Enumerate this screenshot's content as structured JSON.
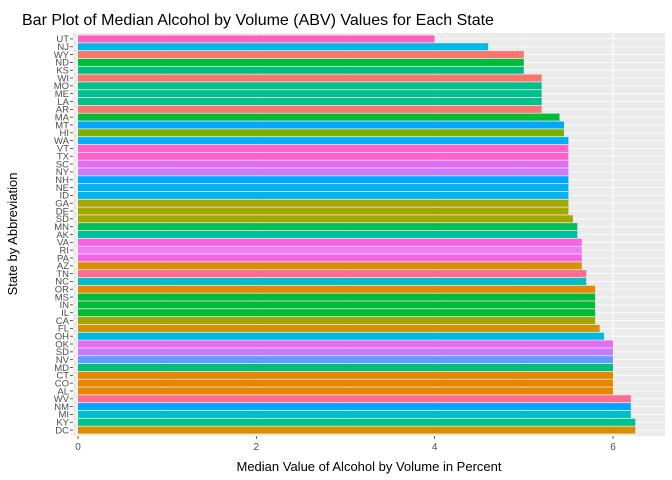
{
  "chart_data": {
    "type": "bar",
    "orientation": "horizontal",
    "title": "Bar Plot of Median Alcohol by Volume (ABV) Values for Each State",
    "xlabel": "Median Value of Alcohol by Volume in Percent",
    "ylabel": "State by Abbreviation",
    "xlim": [
      0,
      6.3
    ],
    "xticks": [
      0,
      2,
      4,
      6
    ],
    "grid": true,
    "legend": "none",
    "categories": [
      "UT",
      "NJ",
      "WY",
      "ND",
      "KS",
      "WI",
      "MO",
      "ME",
      "LA",
      "AR",
      "MA",
      "MT",
      "HI",
      "WA",
      "VT",
      "TX",
      "SC",
      "NY",
      "NH",
      "NE",
      "ID",
      "GA",
      "DE",
      "SD",
      "MN",
      "AK",
      "VA",
      "RI",
      "PA",
      "AZ",
      "TN",
      "NC",
      "OR",
      "MS",
      "IN",
      "IL",
      "CA",
      "FL",
      "OH",
      "OK",
      "SD",
      "NV",
      "MD",
      "CT",
      "CO",
      "AL",
      "WV",
      "NM",
      "MI",
      "KY",
      "DC"
    ],
    "values": [
      4.0,
      4.6,
      5.0,
      5.0,
      5.0,
      5.2,
      5.2,
      5.2,
      5.2,
      5.2,
      5.4,
      5.45,
      5.45,
      5.5,
      5.5,
      5.5,
      5.5,
      5.5,
      5.5,
      5.5,
      5.5,
      5.5,
      5.5,
      5.55,
      5.6,
      5.6,
      5.65,
      5.65,
      5.65,
      5.65,
      5.7,
      5.7,
      5.8,
      5.8,
      5.8,
      5.8,
      5.8,
      5.85,
      5.9,
      6.0,
      6.0,
      6.0,
      6.0,
      6.0,
      6.0,
      6.0,
      6.2,
      6.2,
      6.2,
      6.25,
      6.25
    ],
    "colors": [
      "#FF61C3",
      "#00B8E7",
      "#F8766D",
      "#00BA38",
      "#00BF7D",
      "#F8766D",
      "#00C08B",
      "#00C08B",
      "#00C08B",
      "#F8766D",
      "#00BA38",
      "#00A9FF",
      "#7CAE00",
      "#00B0F6",
      "#FF61CC",
      "#FF61CC",
      "#E76BF3",
      "#C77CFF",
      "#00A9FF",
      "#00B0F6",
      "#00B4F0",
      "#A3A500",
      "#A3A500",
      "#A3A500",
      "#00BC59",
      "#00BF9C",
      "#F564E3",
      "#F17CF6",
      "#F564E3",
      "#D89000",
      "#FF6C91",
      "#00BFC4",
      "#E58700",
      "#00BA38",
      "#00BA38",
      "#00BA38",
      "#A3A500",
      "#D39200",
      "#00B9E3",
      "#E76BF3",
      "#C77CFF",
      "#619CFF",
      "#00BF7D",
      "#E58700",
      "#E58700",
      "#E58700",
      "#FF6C91",
      "#00A5FF",
      "#00BFC4",
      "#00C08B",
      "#D89000"
    ]
  }
}
